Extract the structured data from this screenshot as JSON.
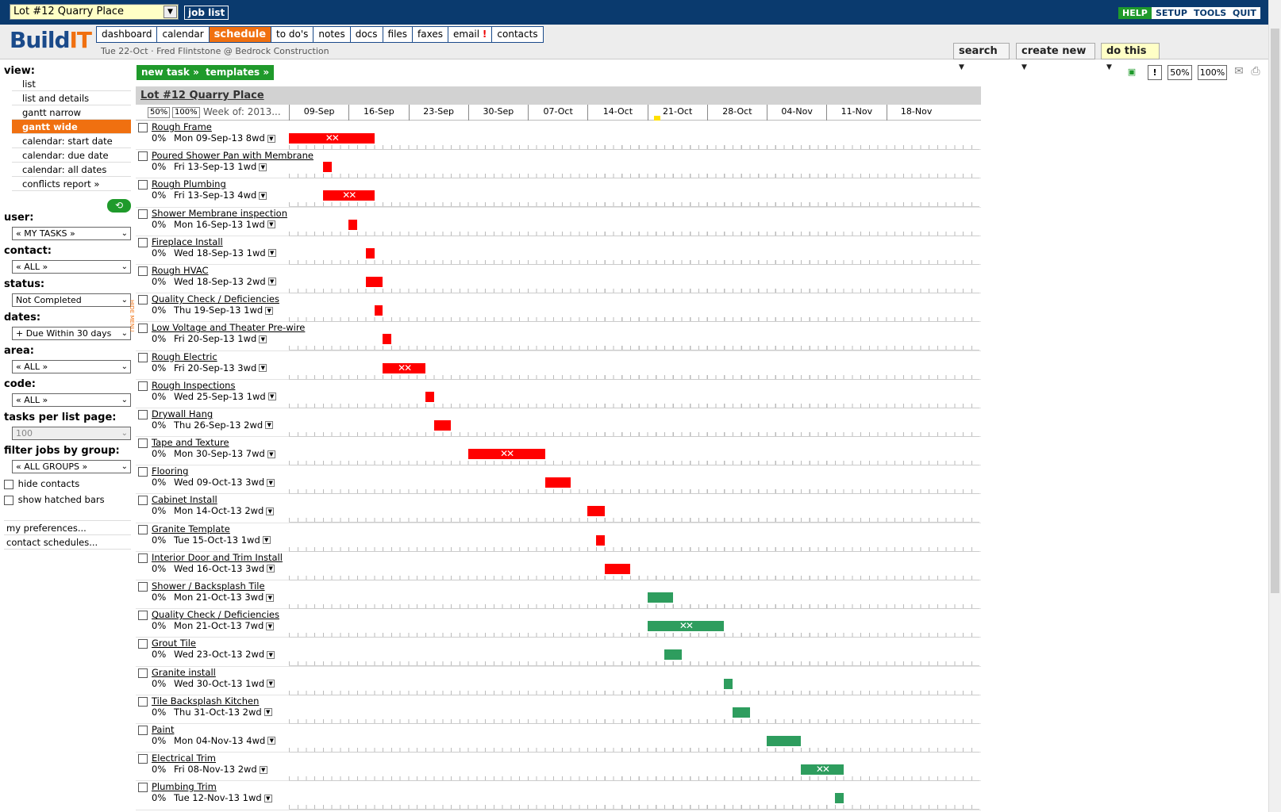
{
  "header": {
    "job_select": "Lot #12 Quarry Place",
    "job_list": "job list",
    "help": "HELP",
    "setup": "SETUP",
    "tools": "TOOLS",
    "quit": "QUIT"
  },
  "logo": {
    "a": "Build",
    "b": "IT"
  },
  "nav": {
    "dashboard": "dashboard",
    "calendar": "calendar",
    "schedule": "schedule",
    "todos": "to do's",
    "notes": "notes",
    "docs": "docs",
    "files": "files",
    "faxes": "faxes",
    "email": "email",
    "email_alert": "!",
    "contacts": "contacts"
  },
  "crumb": "Tue 22-Oct · Fred Flintstone @ Bedrock Construction",
  "hdr": {
    "search": "search",
    "create_new": "create new",
    "do_this": "do this"
  },
  "sidebar": {
    "view_head": "view:",
    "views": [
      "list",
      "list and details",
      "gantt narrow",
      "gantt wide",
      "calendar: start date",
      "calendar: due date",
      "calendar: all dates",
      "conflicts report »"
    ],
    "user_head": "user:",
    "user_val": "« MY TASKS »",
    "contact_head": "contact:",
    "contact_val": "« ALL »",
    "status_head": "status:",
    "status_val": "Not Completed",
    "dates_head": "dates:",
    "dates_val": "+ Due Within 30 days",
    "area_head": "area:",
    "area_val": "« ALL »",
    "code_head": "code:",
    "code_val": "« ALL »",
    "tpp_head": "tasks per list page:",
    "tpp_val": "100",
    "group_head": "filter jobs by group:",
    "group_val": "« ALL GROUPS »",
    "hide_contacts": "hide contacts",
    "show_hatched": "show hatched bars",
    "prefs": "my preferences...",
    "contact_sched": "contact schedules...",
    "hide_tab": "HIDE MENU"
  },
  "actions": {
    "new_task": "new task »",
    "templates": "templates »",
    "zoom50": "50%",
    "zoom100": "100%",
    "alert": "!"
  },
  "gantt": {
    "title": "Lot #12 Quarry Place",
    "zoom50": "50%",
    "zoom100": "100%",
    "week_label": "Week of: 2013...",
    "dates": [
      "09-Sep",
      "16-Sep",
      "23-Sep",
      "30-Sep",
      "07-Oct",
      "14-Oct",
      "21-Oct",
      "28-Oct",
      "04-Nov",
      "11-Nov",
      "18-Nov"
    ],
    "tasks": [
      {
        "name": "Rough Frame",
        "pct": "0%",
        "start": "Mon 09-Sep-13",
        "dur": "8wd",
        "offset": 0,
        "days": 10,
        "color": "#ff0000",
        "hatch": true
      },
      {
        "name": "Poured Shower Pan with Membrane",
        "pct": "0%",
        "start": "Fri 13-Sep-13",
        "dur": "1wd",
        "offset": 4,
        "days": 1,
        "color": "#ff0000",
        "hatch": false
      },
      {
        "name": "Rough Plumbing",
        "pct": "0%",
        "start": "Fri 13-Sep-13",
        "dur": "4wd",
        "offset": 4,
        "days": 6,
        "color": "#ff0000",
        "hatch": true
      },
      {
        "name": "Shower Membrane inspection",
        "pct": "0%",
        "start": "Mon 16-Sep-13",
        "dur": "1wd",
        "offset": 7,
        "days": 1,
        "color": "#ff0000",
        "hatch": false
      },
      {
        "name": "Fireplace Install",
        "pct": "0%",
        "start": "Wed 18-Sep-13",
        "dur": "1wd",
        "offset": 9,
        "days": 1,
        "color": "#ff0000",
        "hatch": false
      },
      {
        "name": "Rough HVAC",
        "pct": "0%",
        "start": "Wed 18-Sep-13",
        "dur": "2wd",
        "offset": 9,
        "days": 2,
        "color": "#ff0000",
        "hatch": false
      },
      {
        "name": "Quality Check / Deficiencies",
        "pct": "0%",
        "start": "Thu 19-Sep-13",
        "dur": "1wd",
        "offset": 10,
        "days": 1,
        "color": "#ff0000",
        "hatch": false
      },
      {
        "name": "Low Voltage and Theater Pre-wire",
        "pct": "0%",
        "start": "Fri 20-Sep-13",
        "dur": "1wd",
        "offset": 11,
        "days": 1,
        "color": "#ff0000",
        "hatch": false
      },
      {
        "name": "Rough Electric",
        "pct": "0%",
        "start": "Fri 20-Sep-13",
        "dur": "3wd",
        "offset": 11,
        "days": 5,
        "color": "#ff0000",
        "hatch": true
      },
      {
        "name": "Rough Inspections",
        "pct": "0%",
        "start": "Wed 25-Sep-13",
        "dur": "1wd",
        "offset": 16,
        "days": 1,
        "color": "#ff0000",
        "hatch": false
      },
      {
        "name": "Drywall Hang",
        "pct": "0%",
        "start": "Thu 26-Sep-13",
        "dur": "2wd",
        "offset": 17,
        "days": 2,
        "color": "#ff0000",
        "hatch": false
      },
      {
        "name": "Tape and Texture",
        "pct": "0%",
        "start": "Mon 30-Sep-13",
        "dur": "7wd",
        "offset": 21,
        "days": 9,
        "color": "#ff0000",
        "hatch": true
      },
      {
        "name": "Flooring",
        "pct": "0%",
        "start": "Wed 09-Oct-13",
        "dur": "3wd",
        "offset": 30,
        "days": 3,
        "color": "#ff0000",
        "hatch": false
      },
      {
        "name": "Cabinet Install",
        "pct": "0%",
        "start": "Mon 14-Oct-13",
        "dur": "2wd",
        "offset": 35,
        "days": 2,
        "color": "#ff0000",
        "hatch": false
      },
      {
        "name": "Granite Template",
        "pct": "0%",
        "start": "Tue 15-Oct-13",
        "dur": "1wd",
        "offset": 36,
        "days": 1,
        "color": "#ff0000",
        "hatch": false
      },
      {
        "name": "Interior Door and Trim Install",
        "pct": "0%",
        "start": "Wed 16-Oct-13",
        "dur": "3wd",
        "offset": 37,
        "days": 3,
        "color": "#ff0000",
        "hatch": false
      },
      {
        "name": "Shower / Backsplash Tile",
        "pct": "0%",
        "start": "Mon 21-Oct-13",
        "dur": "3wd",
        "offset": 42,
        "days": 3,
        "color": "#2e9d5e",
        "hatch": false
      },
      {
        "name": "Quality Check / Deficiencies",
        "pct": "0%",
        "start": "Mon 21-Oct-13",
        "dur": "7wd",
        "offset": 42,
        "days": 9,
        "color": "#2e9d5e",
        "hatch": true
      },
      {
        "name": "Grout Tile",
        "pct": "0%",
        "start": "Wed 23-Oct-13",
        "dur": "2wd",
        "offset": 44,
        "days": 2,
        "color": "#2e9d5e",
        "hatch": false
      },
      {
        "name": "Granite install",
        "pct": "0%",
        "start": "Wed 30-Oct-13",
        "dur": "1wd",
        "offset": 51,
        "days": 1,
        "color": "#2e9d5e",
        "hatch": false
      },
      {
        "name": "Tile Backsplash Kitchen",
        "pct": "0%",
        "start": "Thu 31-Oct-13",
        "dur": "2wd",
        "offset": 52,
        "days": 2,
        "color": "#2e9d5e",
        "hatch": false
      },
      {
        "name": "Paint",
        "pct": "0%",
        "start": "Mon 04-Nov-13",
        "dur": "4wd",
        "offset": 56,
        "days": 4,
        "color": "#2e9d5e",
        "hatch": false
      },
      {
        "name": "Electrical Trim",
        "pct": "0%",
        "start": "Fri 08-Nov-13",
        "dur": "2wd",
        "offset": 60,
        "days": 5,
        "color": "#2e9d5e",
        "hatch": true
      },
      {
        "name": "Plumbing Trim",
        "pct": "0%",
        "start": "Tue 12-Nov-13",
        "dur": "1wd",
        "offset": 64,
        "days": 1,
        "color": "#2e9d5e",
        "hatch": false
      }
    ]
  }
}
